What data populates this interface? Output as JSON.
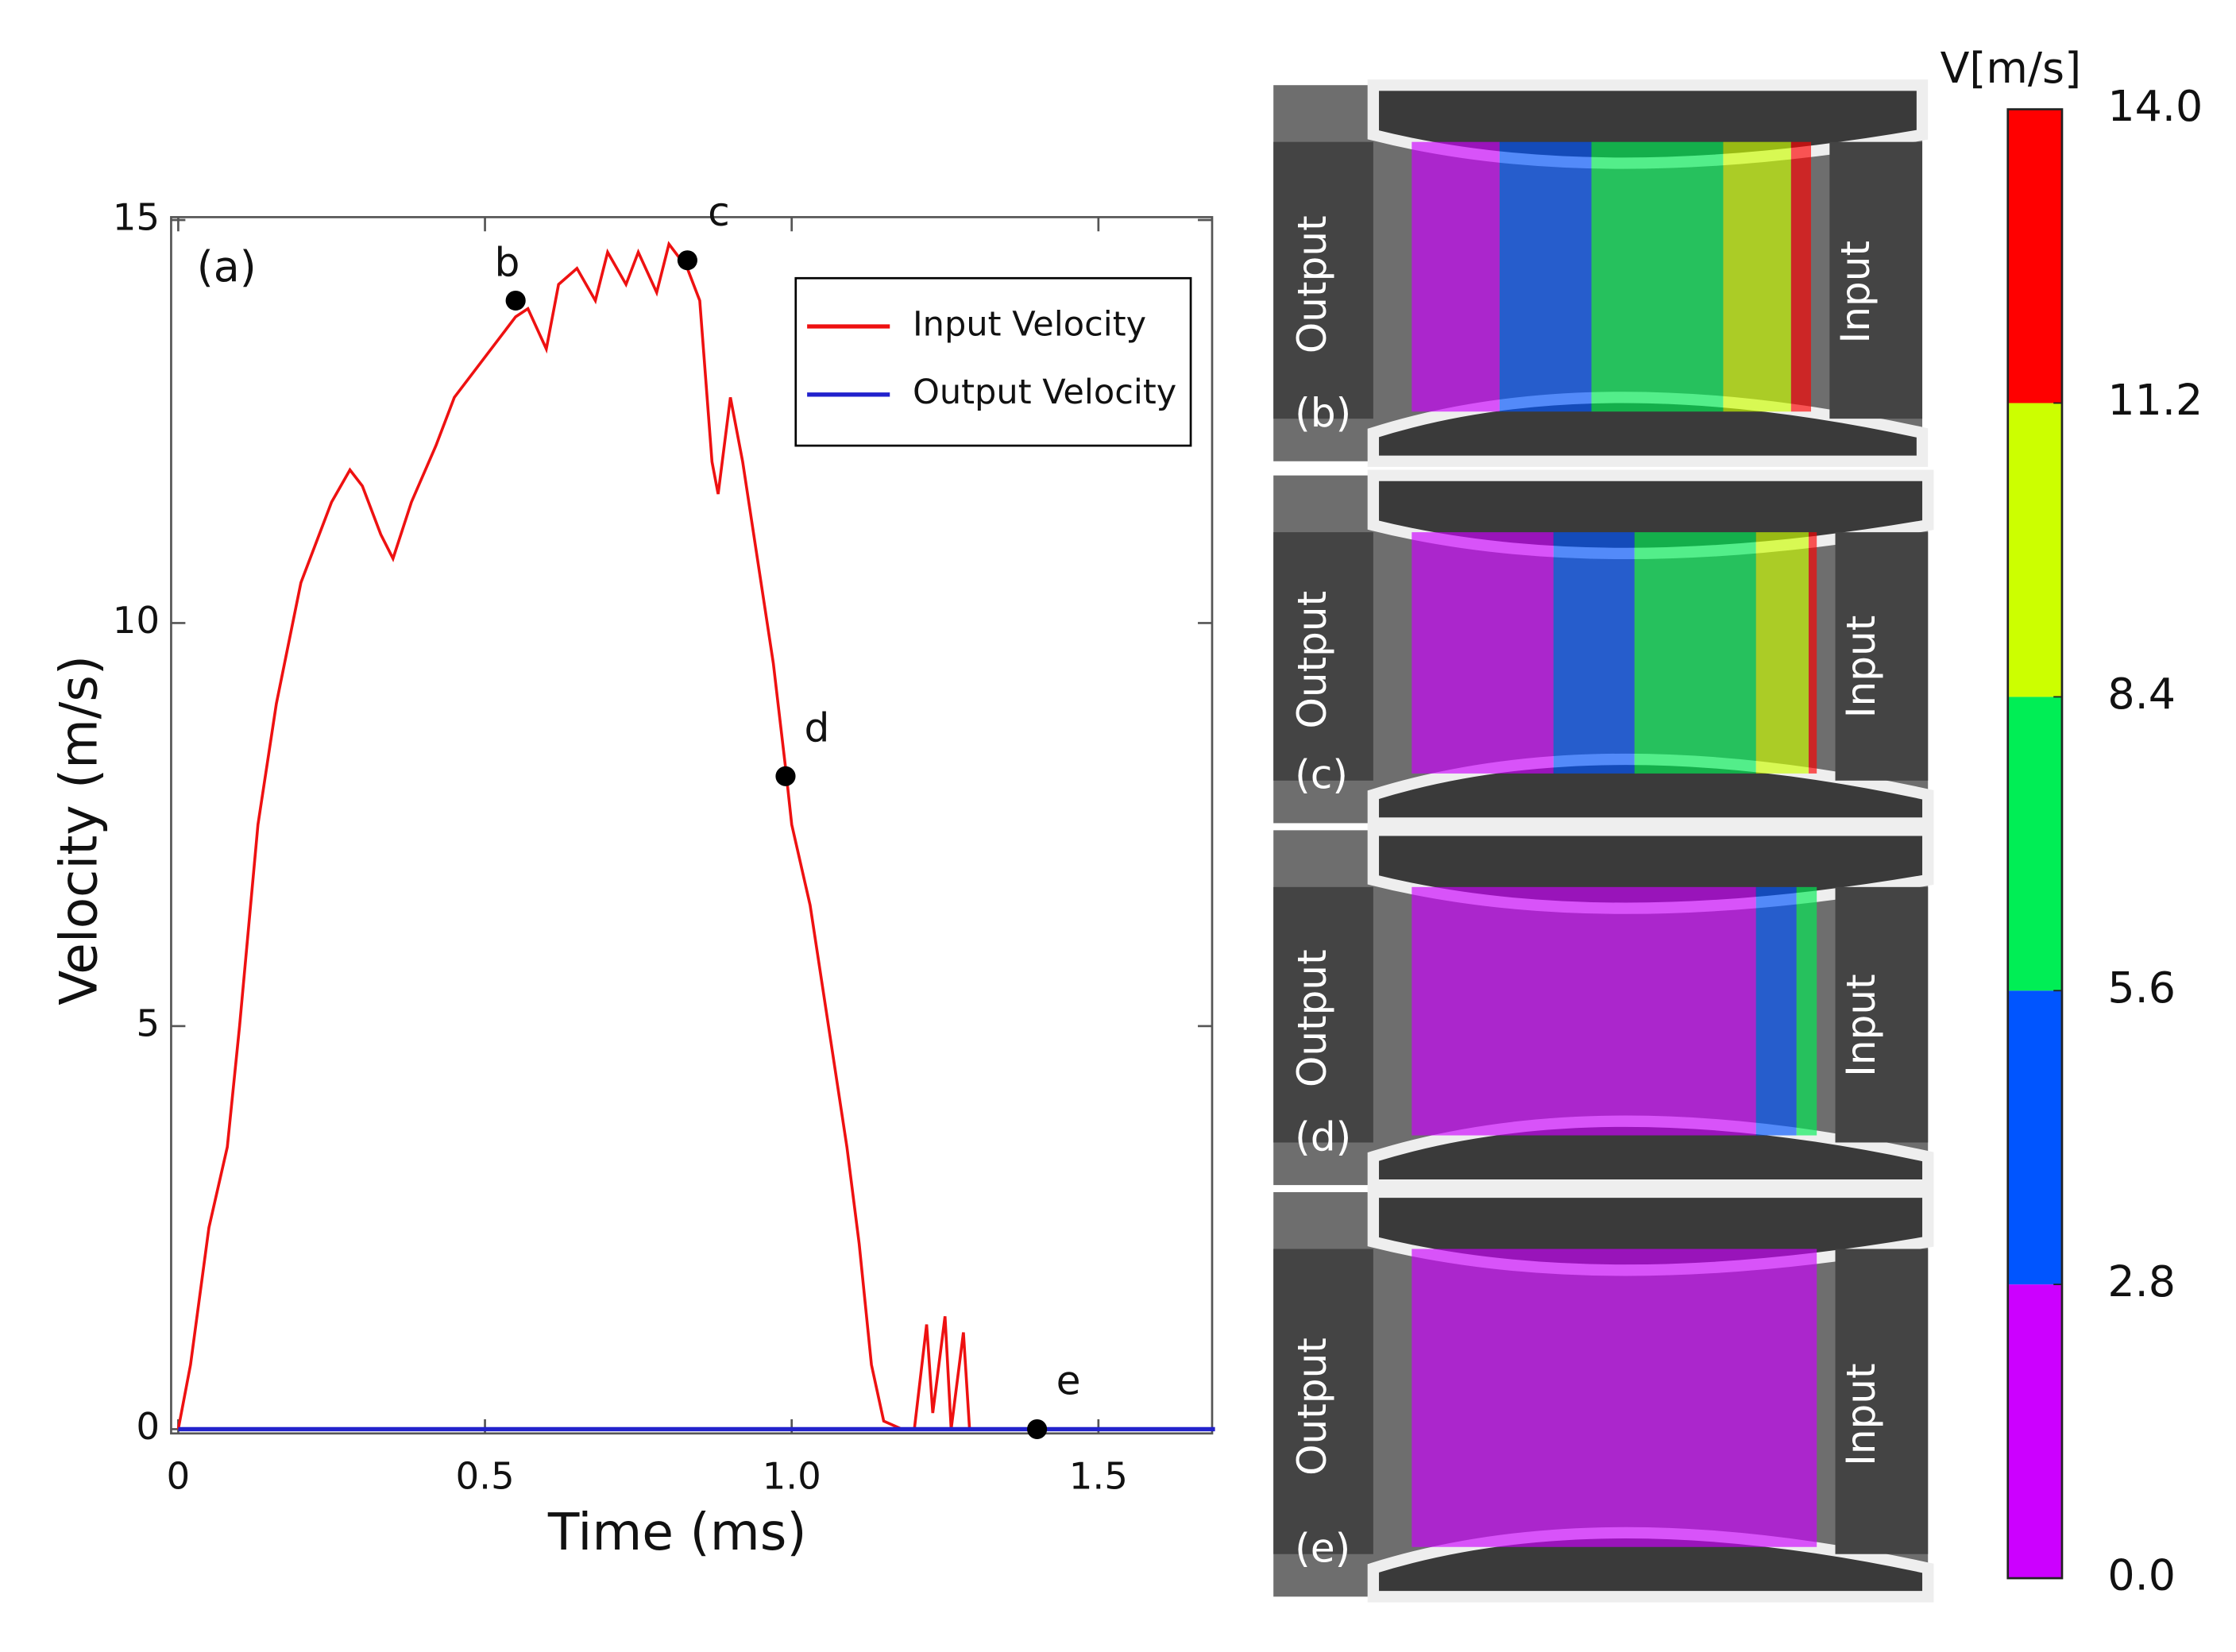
{
  "chart_data": [
    {
      "type": "line",
      "panel_label": "(a)",
      "xlabel": "Time (ms)",
      "ylabel": "Velocity (m/s)",
      "xlim": [
        0,
        1.69
      ],
      "ylim": [
        0,
        15
      ],
      "xticks": [
        0,
        0.5,
        {
          "value": 1,
          "label": "1.0"
        },
        1.5
      ],
      "yticks": [
        0,
        5,
        10,
        15
      ],
      "legend": "upper right",
      "series": [
        {
          "name": "Input Velocity",
          "color": "#ee1111",
          "x": [
            0,
            0.02,
            0.05,
            0.08,
            0.1,
            0.13,
            0.16,
            0.2,
            0.25,
            0.28,
            0.3,
            0.33,
            0.35,
            0.38,
            0.42,
            0.45,
            0.5,
            0.55,
            0.57,
            0.6,
            0.62,
            0.65,
            0.68,
            0.7,
            0.73,
            0.75,
            0.78,
            0.8,
            0.83,
            0.85,
            0.87,
            0.88,
            0.9,
            0.92,
            0.95,
            0.97,
            0.99,
            1.0,
            1.03,
            1.06,
            1.09,
            1.11,
            1.13,
            1.15,
            1.18,
            1.2,
            1.22,
            1.23,
            1.25,
            1.26,
            1.28,
            1.29,
            1.32,
            1.4,
            1.69
          ],
          "values": [
            0,
            0.8,
            2.5,
            3.5,
            5,
            7.5,
            9,
            10.5,
            11.5,
            11.9,
            11.7,
            11.1,
            10.8,
            11.5,
            12.2,
            12.8,
            13.3,
            13.8,
            13.9,
            13.4,
            14.2,
            14.4,
            14.0,
            14.6,
            14.2,
            14.6,
            14.1,
            14.7,
            14.4,
            14.0,
            12.0,
            11.6,
            12.8,
            12.0,
            10.5,
            9.5,
            8.2,
            7.5,
            6.5,
            5.0,
            3.5,
            2.3,
            0.8,
            0.1,
            0,
            0,
            1.3,
            0.2,
            1.4,
            0,
            1.2,
            0,
            0,
            0,
            0
          ]
        },
        {
          "name": "Output Velocity",
          "color": "#2222cc",
          "x": [
            0,
            0.5,
            1.0,
            1.69
          ],
          "values": [
            0,
            0,
            0,
            0
          ]
        }
      ],
      "points": [
        {
          "label": "b",
          "x": 0.55,
          "y": 14.0
        },
        {
          "label": "c",
          "x": 0.83,
          "y": 14.5
        },
        {
          "label": "d",
          "x": 0.99,
          "y": 8.1
        },
        {
          "label": "e",
          "x": 1.4,
          "y": 0
        }
      ]
    },
    {
      "type": "colorbar",
      "title": "V[m/s]",
      "ylim": [
        0,
        14
      ],
      "bounds": [
        0,
        2.8,
        5.6,
        8.4,
        11.2,
        14
      ],
      "colors": [
        "#cc00ff",
        "#0055ff",
        "#00ee55",
        "#ccff00",
        "#ff0000"
      ],
      "yticks": [
        {
          "value": 0,
          "label": "0.0"
        },
        2.8,
        5.6,
        8.4,
        11.2,
        {
          "value": 14,
          "label": "14.0"
        }
      ]
    }
  ],
  "panels": [
    {
      "label": "(b)",
      "left": "Output",
      "right": "Input"
    },
    {
      "label": "(c)",
      "left": "Output",
      "right": "Input"
    },
    {
      "label": "(d)",
      "left": "Output",
      "right": "Input"
    },
    {
      "label": "(e)",
      "left": "Output",
      "right": "Input"
    }
  ]
}
